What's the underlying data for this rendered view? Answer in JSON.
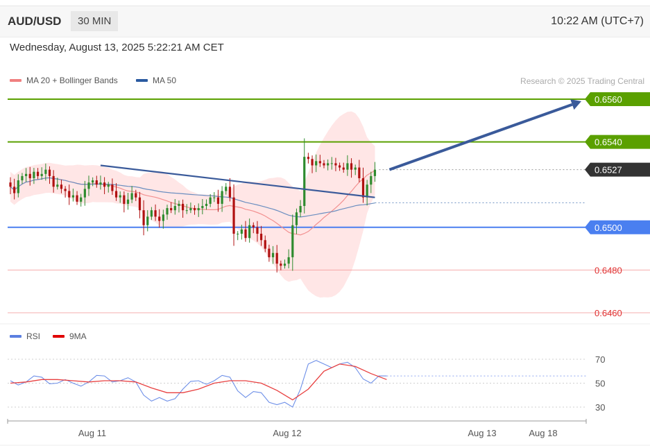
{
  "header": {
    "symbol": "AUD/USD",
    "timeframe": "30 MIN",
    "clock": "10:22 AM (UTC+7)"
  },
  "datetime": "Wednesday, August 13, 2025 5:22:21 AM CET",
  "legend": {
    "ma20": {
      "label": "MA 20 + Bollinger Bands",
      "color": "#f08080"
    },
    "ma50": {
      "label": "MA 50",
      "color": "#2a5aa0"
    }
  },
  "credit": "Research © 2025 Trading Central",
  "rsi_legend": {
    "rsi": {
      "label": "RSI",
      "color": "#5b7fe0"
    },
    "ma9": {
      "label": "9MA",
      "color": "#e00000"
    }
  },
  "colors": {
    "up": "#2e8b2e",
    "down": "#b01010",
    "resistance": "#5aa000",
    "support": "#4a7ff0",
    "support_weak": "#f08a8a",
    "current": "#333333",
    "trend": "#3a5a9a"
  },
  "chart_data": [
    {
      "type": "candlestick",
      "x_axis": {
        "ticks": [
          "Aug 11",
          "Aug 12",
          "Aug 13",
          "Aug 18"
        ]
      },
      "ylim": [
        0.6455,
        0.6565
      ],
      "levels": [
        {
          "value": 0.656,
          "label": "0.6560",
          "kind": "resistance"
        },
        {
          "value": 0.654,
          "label": "0.6540",
          "kind": "resistance"
        },
        {
          "value": 0.6527,
          "label": "0.6527",
          "kind": "current"
        },
        {
          "value": 0.65,
          "label": "0.6500",
          "kind": "support"
        },
        {
          "value": 0.648,
          "label": "0.6480",
          "kind": "support_weak"
        },
        {
          "value": 0.646,
          "label": "0.6460",
          "kind": "support_weak"
        }
      ],
      "close": [
        0.6519,
        0.6516,
        0.6522,
        0.6524,
        0.6525,
        0.6523,
        0.6526,
        0.6524,
        0.6525,
        0.6527,
        0.6524,
        0.6519,
        0.652,
        0.6518,
        0.6517,
        0.6514,
        0.6515,
        0.6512,
        0.6514,
        0.6518,
        0.6521,
        0.6522,
        0.652,
        0.6521,
        0.6519,
        0.652,
        0.6517,
        0.6514,
        0.6515,
        0.6511,
        0.6513,
        0.6516,
        0.6514,
        0.6508,
        0.6501,
        0.6505,
        0.6508,
        0.6505,
        0.6503,
        0.6506,
        0.6509,
        0.6508,
        0.651,
        0.6511,
        0.6508,
        0.6508,
        0.6509,
        0.6508,
        0.6509,
        0.651,
        0.6511,
        0.6514,
        0.6514,
        0.6511,
        0.6517,
        0.6519,
        0.6514,
        0.6497,
        0.6497,
        0.6499,
        0.6495,
        0.6501,
        0.65,
        0.6497,
        0.6494,
        0.649,
        0.6486,
        0.6488,
        0.6483,
        0.6482,
        0.6483,
        0.6486,
        0.6501,
        0.6507,
        0.651,
        0.6533,
        0.6532,
        0.6529,
        0.6531,
        0.653,
        0.6529,
        0.653,
        0.653,
        0.6529,
        0.6528,
        0.6527,
        0.653,
        0.6527,
        0.6528,
        0.6523,
        0.6514,
        0.652,
        0.6524,
        0.6527
      ],
      "trendline": [
        [
          23,
          0.6529
        ],
        [
          93,
          0.6514
        ]
      ],
      "projection": [
        [
          96,
          0.6527
        ],
        [
          105,
          0.656
        ]
      ]
    },
    {
      "type": "line",
      "name": "RSI",
      "ylim": [
        20,
        80
      ],
      "y_ticks": [
        70,
        50,
        30
      ],
      "x": [
        0,
        4,
        8,
        12,
        16,
        20,
        24,
        28,
        32,
        36,
        40,
        44,
        48,
        52,
        56,
        60,
        64,
        68,
        72,
        76,
        80,
        84,
        88,
        92,
        96
      ],
      "series": [
        {
          "name": "RSI",
          "values": [
            52,
            51,
            55,
            50,
            50,
            51,
            56,
            52,
            51,
            35,
            35,
            45,
            52,
            52,
            55,
            38,
            42,
            32,
            30,
            66,
            66,
            66,
            63,
            50,
            56
          ]
        },
        {
          "name": "9MA",
          "values": [
            50,
            51,
            53,
            53,
            52,
            51,
            52,
            52,
            51,
            46,
            42,
            42,
            45,
            50,
            52,
            52,
            50,
            44,
            36,
            45,
            60,
            66,
            64,
            58,
            53
          ]
        }
      ]
    }
  ]
}
